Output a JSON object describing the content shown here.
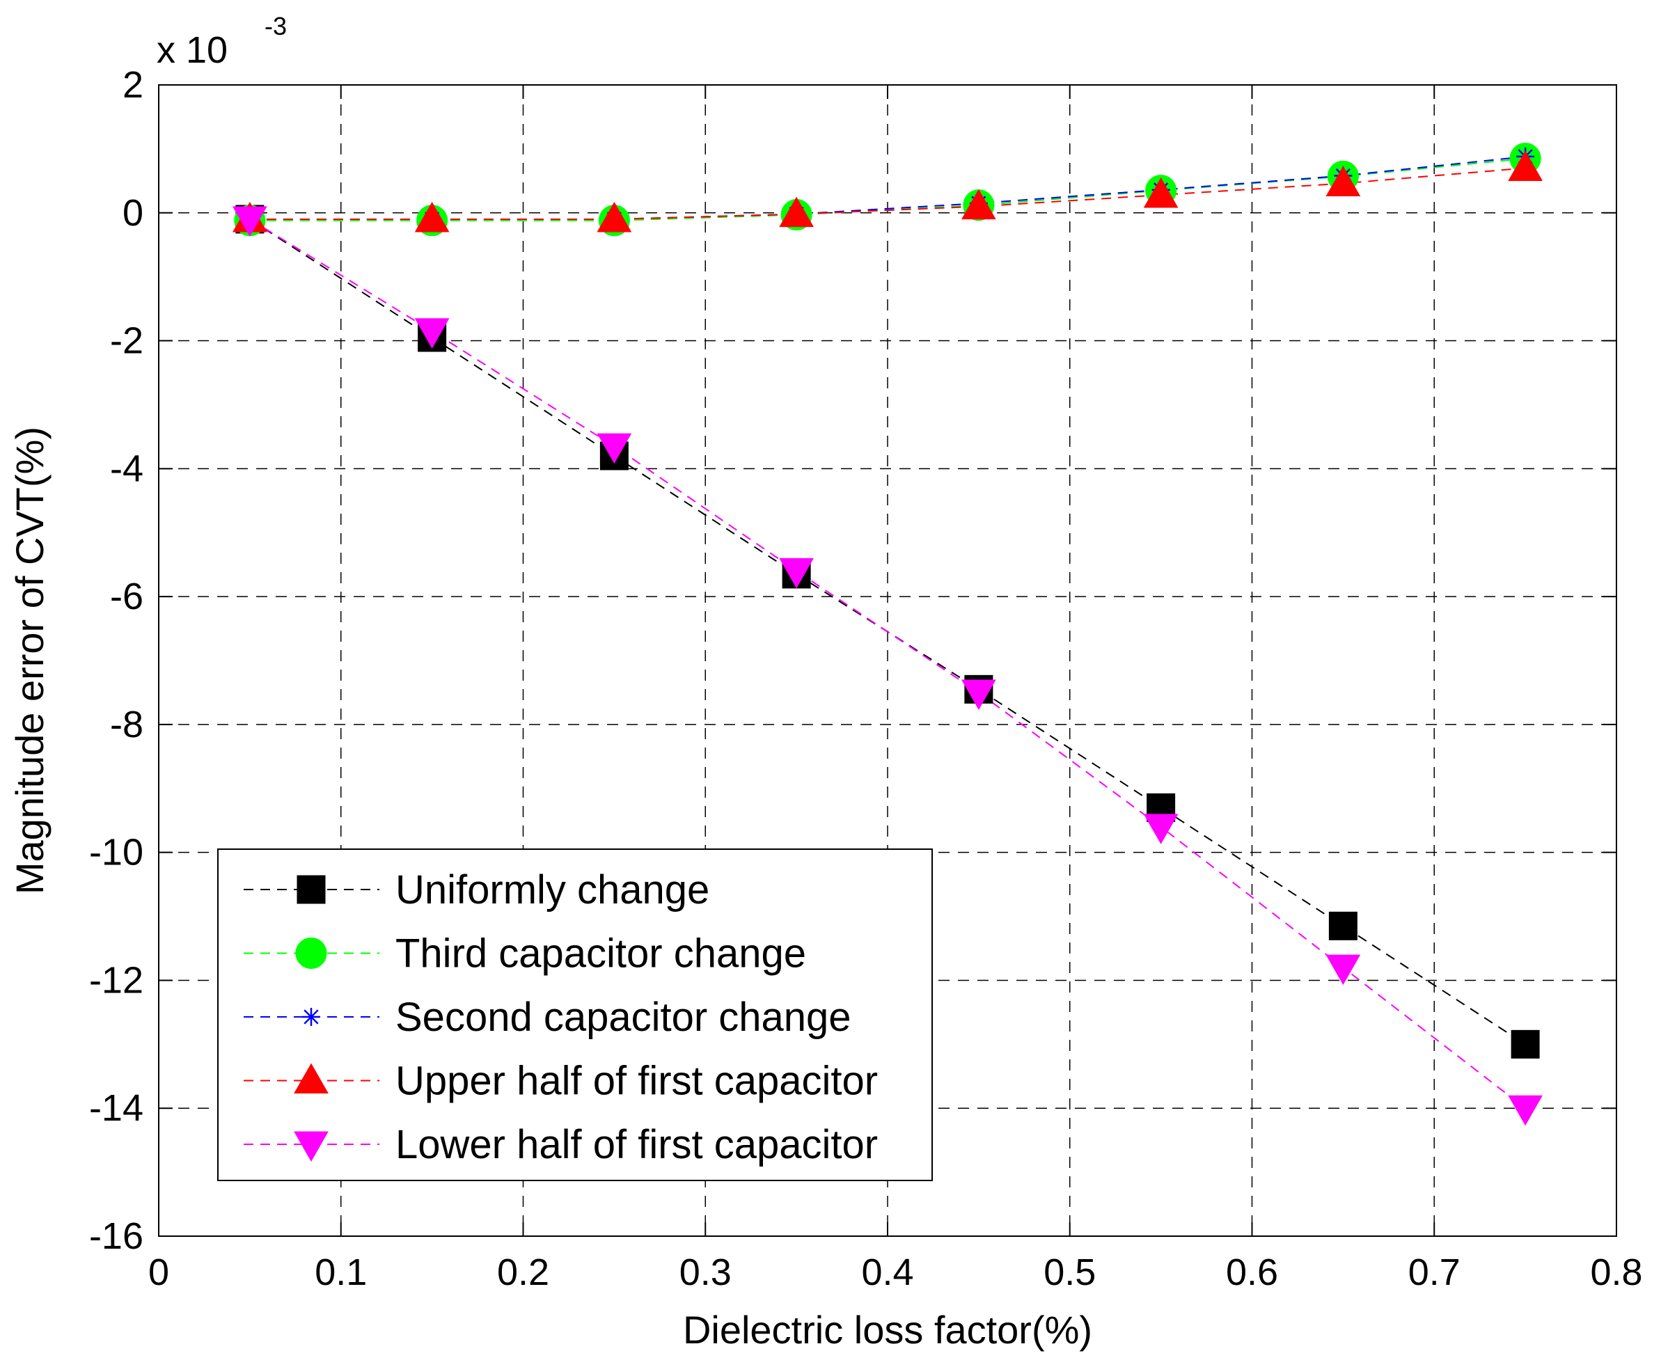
{
  "chart_data": {
    "type": "line",
    "xlabel": "Dielectric loss factor(%)",
    "ylabel": "Magnitude error of CVT(%)",
    "exponent_label": {
      "base": "x 10",
      "power": "-3"
    },
    "xlim": [
      0,
      0.8
    ],
    "ylim": [
      -16,
      2
    ],
    "xticks": [
      0,
      0.1,
      0.2,
      0.3,
      0.4,
      0.5,
      0.6,
      0.7,
      0.8
    ],
    "xtick_labels": [
      "0",
      "0.1",
      "0.2",
      "0.3",
      "0.4",
      "0.5",
      "0.6",
      "0.7",
      "0.8"
    ],
    "yticks": [
      2,
      0,
      -2,
      -4,
      -6,
      -8,
      -10,
      -12,
      -14,
      -16
    ],
    "ytick_labels": [
      "2",
      "0",
      "-2",
      "-4",
      "-6",
      "-8",
      "-10",
      "-12",
      "-14",
      "-16"
    ],
    "grid": true,
    "legend_position": "bottom-left",
    "x": [
      0.05,
      0.15,
      0.25,
      0.35,
      0.45,
      0.55,
      0.65,
      0.75
    ],
    "series": [
      {
        "name": "Uniformly change",
        "marker": "square",
        "color": "#000000",
        "values": [
          -0.1,
          -1.95,
          -3.8,
          -5.65,
          -7.45,
          -9.3,
          -11.15,
          -13.0
        ]
      },
      {
        "name": "Third capacitor change",
        "marker": "circle",
        "color": "#00ff00",
        "values": [
          -0.12,
          -0.12,
          -0.12,
          -0.03,
          0.12,
          0.35,
          0.57,
          0.85
        ]
      },
      {
        "name": "Second capacitor change",
        "marker": "star",
        "color": "#0000ff",
        "values": [
          -0.1,
          -0.1,
          -0.1,
          -0.02,
          0.15,
          0.36,
          0.58,
          0.88
        ]
      },
      {
        "name": "Upper half of first capacitor",
        "marker": "triangle-up",
        "color": "#ff0000",
        "values": [
          -0.1,
          -0.1,
          -0.1,
          -0.02,
          0.1,
          0.28,
          0.46,
          0.7
        ]
      },
      {
        "name": "Lower half of first capacitor",
        "marker": "triangle-down",
        "color": "#ff00ff",
        "values": [
          -0.1,
          -1.85,
          -3.65,
          -5.6,
          -7.5,
          -9.6,
          -11.8,
          -14.0
        ]
      }
    ]
  }
}
